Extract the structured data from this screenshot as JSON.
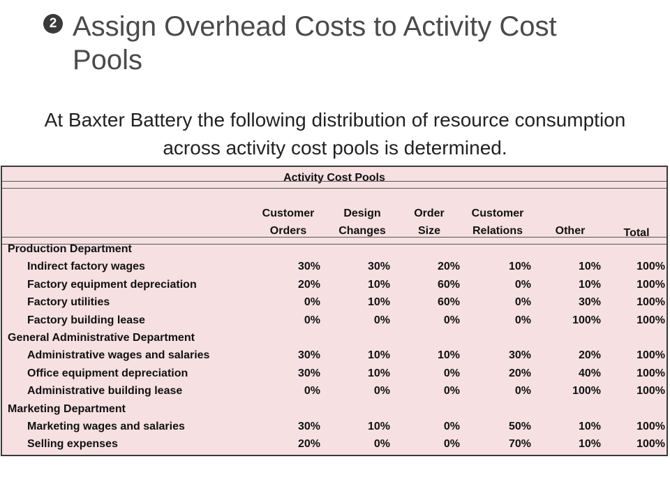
{
  "slide": {
    "bullet": "2",
    "title": "Assign Overhead Costs to Activity Cost Pools",
    "intro": "At Baxter Battery the following distribution of resource consumption across activity cost pools is determined."
  },
  "table": {
    "group_header": "Activity Cost Pools",
    "columns": [
      {
        "line1": "Customer",
        "line2": "Orders"
      },
      {
        "line1": "Design",
        "line2": "Changes"
      },
      {
        "line1": "Order",
        "line2": "Size"
      },
      {
        "line1": "Customer",
        "line2": "Relations"
      },
      {
        "line1": "",
        "line2": "Other"
      },
      {
        "line1": "",
        "line2": "Total"
      }
    ],
    "sections": [
      {
        "name": "Production Department",
        "rows": [
          {
            "label": "Indirect factory wages",
            "values": [
              "30%",
              "30%",
              "20%",
              "10%",
              "10%",
              "100%"
            ]
          },
          {
            "label": "Factory equipment depreciation",
            "values": [
              "20%",
              "10%",
              "60%",
              "0%",
              "10%",
              "100%"
            ]
          },
          {
            "label": "Factory utilities",
            "values": [
              "0%",
              "10%",
              "60%",
              "0%",
              "30%",
              "100%"
            ]
          },
          {
            "label": "Factory building lease",
            "values": [
              "0%",
              "0%",
              "0%",
              "0%",
              "100%",
              "100%"
            ]
          }
        ]
      },
      {
        "name": "General Administrative Department",
        "rows": [
          {
            "label": "Administrative wages and salaries",
            "values": [
              "30%",
              "10%",
              "10%",
              "30%",
              "20%",
              "100%"
            ]
          },
          {
            "label": "Office equipment depreciation",
            "values": [
              "30%",
              "10%",
              "0%",
              "20%",
              "40%",
              "100%"
            ]
          },
          {
            "label": "Administrative building lease",
            "values": [
              "0%",
              "0%",
              "0%",
              "0%",
              "100%",
              "100%"
            ]
          }
        ]
      },
      {
        "name": "Marketing Department",
        "rows": [
          {
            "label": "Marketing wages and salaries",
            "values": [
              "30%",
              "10%",
              "0%",
              "50%",
              "10%",
              "100%"
            ]
          },
          {
            "label": "Selling expenses",
            "values": [
              "20%",
              "0%",
              "0%",
              "70%",
              "10%",
              "100%"
            ]
          }
        ]
      }
    ]
  }
}
